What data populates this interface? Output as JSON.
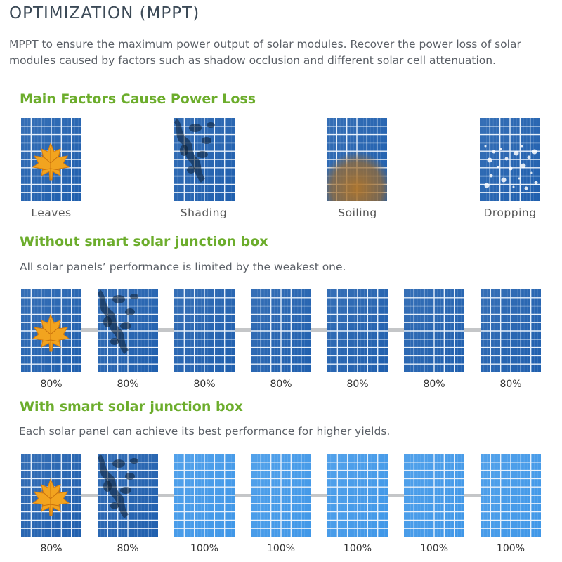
{
  "header": {
    "title": "OPTIMIZATION (MPPT)",
    "intro": "MPPT to ensure the maximum power output of solar modules. Recover the power loss of solar modules caused by factors such as shadow occlusion and different solar cell attenuation."
  },
  "factors": {
    "heading": "Main Factors Cause Power Loss",
    "items": [
      {
        "label": "Leaves",
        "overlay": "leaf"
      },
      {
        "label": "Shading",
        "overlay": "shade"
      },
      {
        "label": "Soiling",
        "overlay": "soil"
      },
      {
        "label": "Dropping",
        "overlay": "drop"
      }
    ]
  },
  "without": {
    "heading": "Without smart solar junction box",
    "subtitle": "All solar panels’ performance is limited by the weakest one.",
    "panels": [
      {
        "percent": "80%",
        "overlay": "leaf",
        "style": "dark"
      },
      {
        "percent": "80%",
        "overlay": "shade",
        "style": "dark"
      },
      {
        "percent": "80%",
        "overlay": "none",
        "style": "dark"
      },
      {
        "percent": "80%",
        "overlay": "none",
        "style": "dark"
      },
      {
        "percent": "80%",
        "overlay": "none",
        "style": "dark"
      },
      {
        "percent": "80%",
        "overlay": "none",
        "style": "dark"
      },
      {
        "percent": "80%",
        "overlay": "none",
        "style": "dark"
      }
    ]
  },
  "with": {
    "heading": "With smart solar junction box",
    "subtitle": "Each solar panel can achieve its best performance for higher yields.",
    "panels": [
      {
        "percent": "80%",
        "overlay": "leaf",
        "style": "dark"
      },
      {
        "percent": "80%",
        "overlay": "shade",
        "style": "dark"
      },
      {
        "percent": "100%",
        "overlay": "none",
        "style": "light"
      },
      {
        "percent": "100%",
        "overlay": "none",
        "style": "light"
      },
      {
        "percent": "100%",
        "overlay": "none",
        "style": "light"
      },
      {
        "percent": "100%",
        "overlay": "none",
        "style": "light"
      },
      {
        "percent": "100%",
        "overlay": "none",
        "style": "light"
      }
    ]
  },
  "colors": {
    "accent_green": "#6cad2c",
    "panel_dark": "#1f5fae",
    "panel_light": "#3f97e8",
    "connector": "#c4c6c8"
  }
}
